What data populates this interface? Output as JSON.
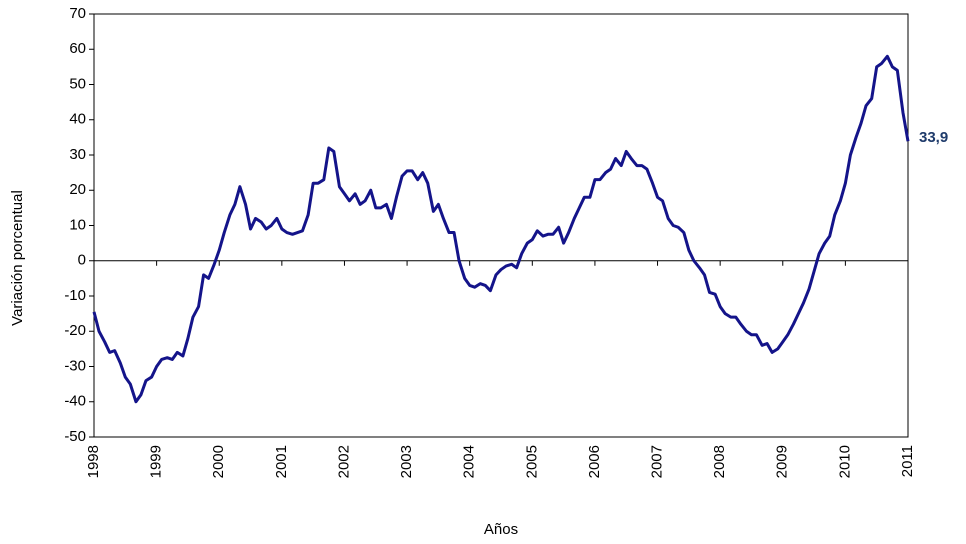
{
  "chart_data": {
    "type": "line",
    "x_label": "Años",
    "y_label": "Variación porcentual",
    "x": [
      1998,
      1998.08,
      1998.17,
      1998.25,
      1998.33,
      1998.42,
      1998.5,
      1998.58,
      1998.67,
      1998.75,
      1998.83,
      1998.92,
      1999,
      1999.08,
      1999.17,
      1999.25,
      1999.33,
      1999.42,
      1999.5,
      1999.58,
      1999.67,
      1999.75,
      1999.83,
      1999.92,
      2000,
      2000.08,
      2000.17,
      2000.25,
      2000.33,
      2000.42,
      2000.5,
      2000.58,
      2000.67,
      2000.75,
      2000.83,
      2000.92,
      2001,
      2001.08,
      2001.17,
      2001.25,
      2001.33,
      2001.42,
      2001.5,
      2001.58,
      2001.67,
      2001.75,
      2001.83,
      2001.92,
      2002,
      2002.08,
      2002.17,
      2002.25,
      2002.33,
      2002.42,
      2002.5,
      2002.58,
      2002.67,
      2002.75,
      2002.83,
      2002.92,
      2003,
      2003.08,
      2003.17,
      2003.25,
      2003.33,
      2003.42,
      2003.5,
      2003.58,
      2003.67,
      2003.75,
      2003.83,
      2003.92,
      2004,
      2004.08,
      2004.17,
      2004.25,
      2004.33,
      2004.42,
      2004.5,
      2004.58,
      2004.67,
      2004.75,
      2004.83,
      2004.92,
      2005,
      2005.08,
      2005.17,
      2005.25,
      2005.33,
      2005.42,
      2005.5,
      2005.58,
      2005.67,
      2005.75,
      2005.83,
      2005.92,
      2006,
      2006.08,
      2006.17,
      2006.25,
      2006.33,
      2006.42,
      2006.5,
      2006.58,
      2006.67,
      2006.75,
      2006.83,
      2006.92,
      2007,
      2007.08,
      2007.17,
      2007.25,
      2007.33,
      2007.42,
      2007.5,
      2007.58,
      2007.67,
      2007.75,
      2007.83,
      2007.92,
      2008,
      2008.08,
      2008.17,
      2008.25,
      2008.33,
      2008.42,
      2008.5,
      2008.58,
      2008.67,
      2008.75,
      2008.83,
      2008.92,
      2009,
      2009.08,
      2009.17,
      2009.25,
      2009.33,
      2009.42,
      2009.5,
      2009.58,
      2009.67,
      2009.75,
      2009.83,
      2009.92,
      2010,
      2010.08,
      2010.17,
      2010.25,
      2010.33,
      2010.42,
      2010.5,
      2010.58,
      2010.67,
      2010.75,
      2010.83,
      2010.92,
      2011
    ],
    "series": [
      {
        "color": "#14148a",
        "values": [
          -14.5,
          -20,
          -23,
          -26,
          -25.5,
          -29,
          -33,
          -35,
          -40,
          -38,
          -34,
          -33,
          -30,
          -28,
          -27.5,
          -28,
          -26,
          -27,
          -22,
          -16,
          -13,
          -4,
          -5,
          -1,
          3,
          8,
          13,
          16,
          21,
          16,
          9,
          12,
          11,
          9,
          10,
          12,
          9,
          8,
          7.5,
          8,
          8.5,
          13,
          22,
          22,
          23,
          32,
          31,
          21,
          19,
          17,
          19,
          16,
          17,
          20,
          15,
          15,
          16,
          12,
          18,
          24,
          25.5,
          25.5,
          23,
          25,
          22,
          14,
          16,
          12,
          8,
          8,
          0,
          -5,
          -7,
          -7.5,
          -6.5,
          -7,
          -8.5,
          -4,
          -2.5,
          -1.5,
          -1,
          -2,
          2,
          5,
          6,
          8.5,
          7,
          7.5,
          7.5,
          9.5,
          5,
          8,
          12,
          15,
          18,
          18,
          23,
          23,
          25,
          26,
          29,
          27,
          31,
          29,
          27,
          27,
          26,
          22,
          18,
          17,
          12,
          10,
          9.5,
          8,
          3,
          0,
          -2,
          -4,
          -9,
          -9.5,
          -13,
          -15,
          -16,
          -16,
          -18,
          -20,
          -21,
          -21,
          -24,
          -23.5,
          -26,
          -25,
          -23,
          -21,
          -18,
          -15,
          -12,
          -8,
          -3,
          2,
          5,
          7,
          13,
          17,
          22,
          30,
          35,
          39,
          44,
          46,
          55,
          56,
          58,
          55,
          54,
          42,
          33.9
        ]
      }
    ],
    "end_label": "33,9",
    "end_label_color": "#1f3b6b",
    "xlim": [
      1998,
      2011
    ],
    "xticks": [
      1998,
      1999,
      2000,
      2001,
      2002,
      2003,
      2004,
      2005,
      2006,
      2007,
      2008,
      2009,
      2010,
      2011
    ],
    "ylim": [
      -50,
      70
    ],
    "yticks": [
      -50,
      -40,
      -30,
      -20,
      -10,
      0,
      10,
      20,
      30,
      40,
      50,
      60,
      70
    ],
    "grid": false
  }
}
